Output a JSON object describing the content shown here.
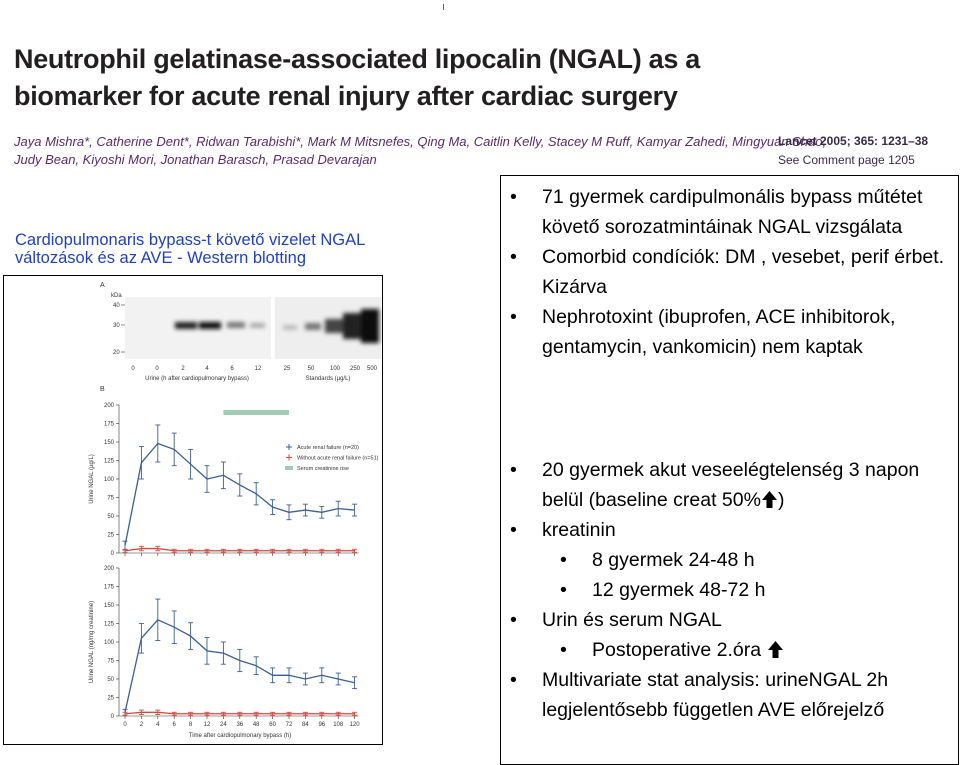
{
  "header": {
    "title": [
      "Neutrophil gelatinase-associated lipocalin (NGAL) as a",
      "biomarker for acute renal injury after cardiac surgery"
    ],
    "authors": [
      "Jaya Mishra*, Catherine Dent*, Ridwan Tarabishi*, Mark M Mitsnefes, Qing Ma, Caitlin Kelly, Stacey M Ruff, Kamyar Zahedi, Mingyuan Shao,",
      "Judy Bean, Kiyoshi Mori, Jonathan Barasch, Prasad Devarajan"
    ],
    "citation": "Lancet 2005; 365: 1231–38",
    "comment": "See Comment page 1205"
  },
  "caption": [
    "Cardiopulmonaris bypass-t követő vizelet NGAL",
    "változások és az AVE  - Western blotting"
  ],
  "figure": {
    "panel_a": {
      "label": "A",
      "unit": "kDa",
      "kda_ticks": [
        40,
        30,
        20
      ],
      "urine_lanes": [
        "0",
        "0",
        "2",
        "4",
        "6",
        "12"
      ],
      "standard_lanes": [
        "25",
        "50",
        "100",
        "250",
        "500"
      ],
      "urine_label": "Urine (h after cardiopulmonary bypass)",
      "standards_label": "Standards (µg/L)"
    },
    "panel_b": {
      "label": "B",
      "legend": [
        {
          "name": "Acute renal failure (n=20)",
          "color": "#3a5f95"
        },
        {
          "name": "Without acute renal failure (n=51)",
          "color": "#d9483b"
        },
        {
          "name": "Serum creatinine rise",
          "color": "#a3cdb3"
        }
      ],
      "creatinine_rise": [
        24,
        72
      ],
      "categories": [
        "0",
        "2",
        "4",
        "6",
        "8",
        "12",
        "24",
        "36",
        "48",
        "60",
        "72",
        "84",
        "96",
        "108",
        "120"
      ],
      "xlabel": "Time after cardiopulmonary bypass (h)",
      "charts": [
        {
          "type": "line",
          "ylabel": "Urine NGAL (µg/L)",
          "ylim": [
            0,
            200
          ],
          "yticks": [
            0,
            25,
            50,
            75,
            100,
            125,
            150,
            175,
            200
          ],
          "series": [
            {
              "color": "#3a5f95",
              "values": [
                10,
                122,
                148,
                140,
                120,
                100,
                105,
                92,
                80,
                62,
                55,
                58,
                55,
                60,
                58
              ],
              "errors": [
                6,
                22,
                25,
                22,
                20,
                18,
                18,
                15,
                15,
                10,
                10,
                8,
                8,
                10,
                8
              ]
            },
            {
              "color": "#d9483b",
              "values": [
                3,
                6,
                6,
                3,
                3,
                3,
                3,
                3,
                3,
                3,
                3,
                3,
                3,
                3,
                3
              ],
              "errors": [
                2,
                3,
                3,
                2,
                2,
                2,
                2,
                2,
                2,
                2,
                2,
                2,
                2,
                2,
                2
              ]
            }
          ]
        },
        {
          "type": "line",
          "ylabel": "Urine NGAL (ng/mg creatinine)",
          "ylim": [
            0,
            200
          ],
          "yticks": [
            0,
            25,
            50,
            75,
            100,
            125,
            150,
            175,
            200
          ],
          "series": [
            {
              "color": "#3a5f95",
              "values": [
                5,
                105,
                130,
                120,
                108,
                88,
                85,
                75,
                68,
                55,
                55,
                50,
                55,
                50,
                45
              ],
              "errors": [
                4,
                20,
                28,
                22,
                18,
                18,
                15,
                15,
                12,
                10,
                10,
                8,
                10,
                8,
                8
              ]
            },
            {
              "color": "#d9483b",
              "values": [
                3,
                5,
                5,
                3,
                3,
                3,
                3,
                3,
                3,
                3,
                3,
                3,
                3,
                3,
                3
              ],
              "errors": [
                2,
                3,
                3,
                2,
                2,
                2,
                2,
                2,
                2,
                2,
                2,
                2,
                2,
                2,
                2
              ]
            }
          ]
        }
      ]
    }
  },
  "bullets_top": [
    "71 gyermek cardipulmonális bypass műtétet követő sorozatmintáinak NGAL vizsgálata",
    "Comorbid condíciók: DM , vesebet, perif érbet. Kizárva",
    "Nephrotoxint (ibuprofen, ACE inhibitorok, gentamycin, vankomicin) nem kaptak"
  ],
  "bullets_bottom": {
    "item1": "20 gyermek akut veseelégtelenség 3 napon belül (baseline creat 50%",
    "item1_end": ")",
    "item2": "kreatinin",
    "item2_sub": [
      "8 gyermek 24-48 h",
      "12 gyermek 48-72 h"
    ],
    "item3": "Urin és serum NGAL",
    "item3_sub": "Postoperative 2.óra",
    "item4": "Multivariate stat analysis: urineNGAL 2h legjelentősebb független AVE előrejelző"
  }
}
